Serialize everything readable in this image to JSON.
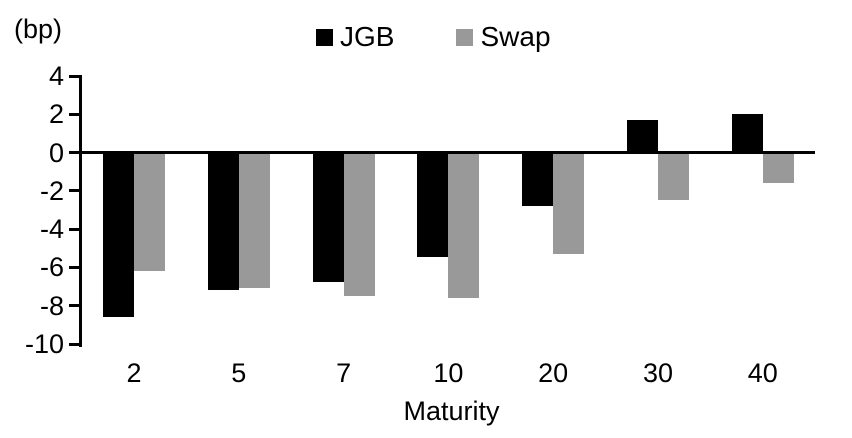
{
  "chart_data": {
    "type": "bar",
    "title": "",
    "unit_label": "(bp)",
    "xlabel": "Maturity",
    "ylabel": "",
    "categories": [
      "2",
      "5",
      "7",
      "10",
      "20",
      "30",
      "40"
    ],
    "series": [
      {
        "name": "JGB",
        "color": "#000000",
        "values": [
          -8.5,
          -7.1,
          -6.7,
          -5.4,
          -2.7,
          1.7,
          2.0
        ]
      },
      {
        "name": "Swap",
        "color": "#999999",
        "values": [
          -6.1,
          -7.0,
          -7.4,
          -7.5,
          -5.2,
          -2.4,
          -1.5
        ]
      }
    ],
    "y_axis": {
      "min": -10,
      "max": 4,
      "tick_step": 2,
      "ticks": [
        4,
        2,
        0,
        -2,
        -4,
        -6,
        -8,
        -10
      ]
    },
    "axis_color": "#000000",
    "legend_position": "top-center",
    "grid": false
  }
}
